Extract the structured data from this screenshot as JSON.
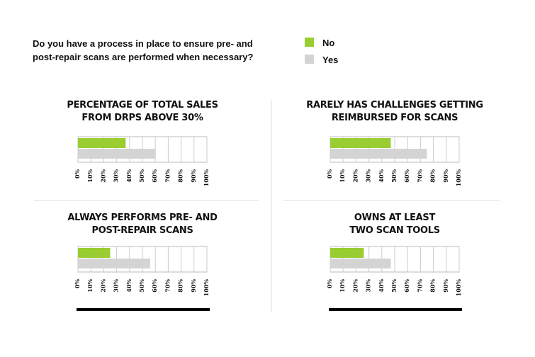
{
  "title": [
    "Do you have a process in place to ensure pre- and",
    "post-repair scans are performed when necessary?"
  ],
  "chart_data": [
    {
      "type": "bar",
      "title": [
        "PERCENTAGE OF TOTAL SALES",
        "FROM DRPS ABOVE 30%"
      ],
      "series": [
        {
          "name": "No",
          "color": "#9acd32",
          "values": [
            37
          ]
        },
        {
          "name": "Yes",
          "color": "#d4d4d4",
          "values": [
            60
          ]
        }
      ],
      "xlim": [
        0,
        100
      ],
      "xticks": [
        {
          "value": 0,
          "label": "0%"
        },
        {
          "value": 10,
          "label": "10%"
        },
        {
          "value": 20,
          "label": "20%"
        },
        {
          "value": 30,
          "label": "30%"
        },
        {
          "value": 40,
          "label": "40%"
        },
        {
          "value": 50,
          "label": "50%"
        },
        {
          "value": 60,
          "label": "60%"
        },
        {
          "value": 70,
          "label": "70%"
        },
        {
          "value": 80,
          "label": "80%"
        },
        {
          "value": 90,
          "label": "90%"
        },
        {
          "value": 100,
          "label": "100%"
        }
      ],
      "grid": true
    },
    {
      "type": "bar",
      "title": [
        "RARELY HAS CHALLENGES GETTING",
        "REIMBURSED FOR SCANS"
      ],
      "series": [
        {
          "name": "No",
          "color": "#9acd32",
          "values": [
            47
          ]
        },
        {
          "name": "Yes",
          "color": "#d4d4d4",
          "values": [
            75
          ]
        }
      ],
      "xlim": [
        0,
        100
      ],
      "xticks": [
        {
          "value": 0,
          "label": "0%"
        },
        {
          "value": 10,
          "label": "10%"
        },
        {
          "value": 20,
          "label": "20%"
        },
        {
          "value": 30,
          "label": "30%"
        },
        {
          "value": 40,
          "label": "40%"
        },
        {
          "value": 50,
          "label": "50%"
        },
        {
          "value": 60,
          "label": "60%"
        },
        {
          "value": 70,
          "label": "70%"
        },
        {
          "value": 80,
          "label": "80%"
        },
        {
          "value": 90,
          "label": "90%"
        },
        {
          "value": 100,
          "label": "100%"
        }
      ],
      "grid": true
    },
    {
      "type": "bar",
      "title": [
        "ALWAYS PERFORMS PRE- AND",
        "POST-REPAIR SCANS"
      ],
      "series": [
        {
          "name": "No",
          "color": "#9acd32",
          "values": [
            25
          ]
        },
        {
          "name": "Yes",
          "color": "#d4d4d4",
          "values": [
            56
          ]
        }
      ],
      "xlim": [
        0,
        100
      ],
      "xticks": [
        {
          "value": 0,
          "label": "0%"
        },
        {
          "value": 10,
          "label": "10%"
        },
        {
          "value": 20,
          "label": "20%"
        },
        {
          "value": 30,
          "label": "30%"
        },
        {
          "value": 40,
          "label": "40%"
        },
        {
          "value": 50,
          "label": "50%"
        },
        {
          "value": 60,
          "label": "60%"
        },
        {
          "value": 70,
          "label": "70%"
        },
        {
          "value": 80,
          "label": "80%"
        },
        {
          "value": 90,
          "label": "90%"
        },
        {
          "value": 100,
          "label": "100%"
        }
      ],
      "grid": true
    },
    {
      "type": "bar",
      "title": [
        "OWNS AT LEAST",
        "TWO SCAN TOOLS"
      ],
      "series": [
        {
          "name": "No",
          "color": "#9acd32",
          "values": [
            26
          ]
        },
        {
          "name": "Yes",
          "color": "#d4d4d4",
          "values": [
            47
          ]
        }
      ],
      "xlim": [
        0,
        100
      ],
      "xticks": [
        {
          "value": 0,
          "label": "0%"
        },
        {
          "value": 10,
          "label": "10%"
        },
        {
          "value": 20,
          "label": "20%"
        },
        {
          "value": 30,
          "label": "30%"
        },
        {
          "value": 40,
          "label": "40%"
        },
        {
          "value": 50,
          "label": "50%"
        },
        {
          "value": 60,
          "label": "60%"
        },
        {
          "value": 70,
          "label": "70%"
        },
        {
          "value": 80,
          "label": "80%"
        },
        {
          "value": 90,
          "label": "90%"
        },
        {
          "value": 100,
          "label": "100%"
        }
      ],
      "grid": true
    }
  ]
}
